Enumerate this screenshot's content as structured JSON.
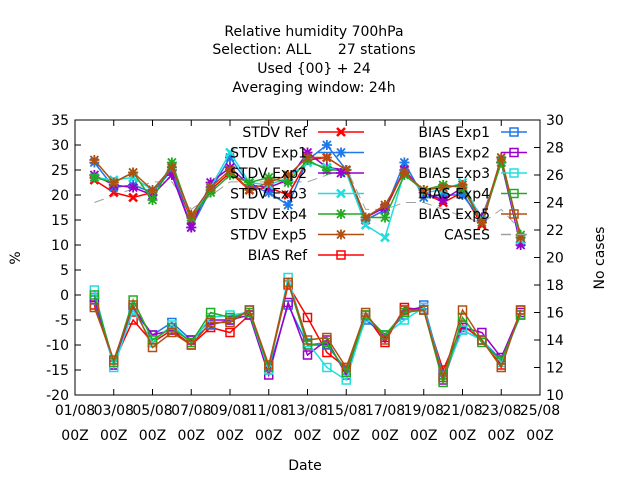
{
  "chart_data": {
    "type": "line",
    "title_lines": [
      "Relative humidity 700hPa",
      "Selection: ALL      27 stations",
      "Used {00} + 24",
      "Averaging window: 24h"
    ],
    "xlabel": "Date",
    "ylabel": "%",
    "y2label": "No cases",
    "ylim": [
      -20,
      35
    ],
    "y2lim": [
      10,
      30
    ],
    "grid": false,
    "legend_position": "top-right",
    "y_ticks": [
      "35",
      "30",
      "25",
      "20",
      "15",
      "10",
      "5",
      "0",
      "-5",
      "-10",
      "-15",
      "-20"
    ],
    "y2_ticks": [
      "30",
      "28",
      "26",
      "24",
      "22",
      "20",
      "18",
      "16",
      "14",
      "12",
      "10"
    ],
    "x_ticks": [
      {
        "date": "01/08",
        "hour": "00Z"
      },
      {
        "date": "03/08",
        "hour": "00Z"
      },
      {
        "date": "05/08",
        "hour": "00Z"
      },
      {
        "date": "07/08",
        "hour": "00Z"
      },
      {
        "date": "09/08",
        "hour": "00Z"
      },
      {
        "date": "11/08",
        "hour": "00Z"
      },
      {
        "date": "13/08",
        "hour": "00Z"
      },
      {
        "date": "15/08",
        "hour": "00Z"
      },
      {
        "date": "17/08",
        "hour": "00Z"
      },
      {
        "date": "19/08",
        "hour": "00Z"
      },
      {
        "date": "21/08",
        "hour": "00Z"
      },
      {
        "date": "23/08",
        "hour": "00Z"
      },
      {
        "date": "25/08",
        "hour": "00Z"
      }
    ],
    "x": [
      "02/08",
      "03/08",
      "04/08",
      "05/08",
      "06/08",
      "07/08",
      "08/08",
      "09/08",
      "10/08",
      "11/08",
      "12/08",
      "13/08",
      "14/08",
      "15/08",
      "16/08",
      "17/08",
      "18/08",
      "19/08",
      "20/08",
      "21/08",
      "22/08",
      "23/08",
      "24/08"
    ],
    "series": [
      {
        "name": "STDV Ref",
        "kind": "stdv",
        "color": "#ff0000",
        "values": [
          23,
          20.5,
          19.5,
          20.5,
          25,
          15,
          21,
          24.5,
          21,
          21.5,
          20,
          27,
          27.5,
          25,
          15,
          17,
          25,
          20.5,
          18.5,
          20.5,
          14,
          27,
          11
        ]
      },
      {
        "name": "STDV Exp1",
        "kind": "stdv",
        "color": "#1e78e8",
        "values": [
          26.5,
          21.5,
          22,
          20.5,
          25,
          13.5,
          21,
          27.5,
          22,
          20.5,
          18,
          27,
          30,
          25,
          15,
          17,
          26.5,
          19.5,
          20,
          20,
          15,
          26.5,
          10.5
        ]
      },
      {
        "name": "STDV Exp2",
        "kind": "stdv",
        "color": "#9900cc",
        "values": [
          24,
          22,
          21.5,
          20,
          24,
          13.5,
          22.5,
          25.5,
          22,
          21.5,
          23,
          28.5,
          25.5,
          25,
          15.5,
          17.5,
          25,
          20.5,
          19,
          21.5,
          15.5,
          26.5,
          10
        ]
      },
      {
        "name": "STDV Exp3",
        "kind": "stdv",
        "color": "#22dddd",
        "values": [
          23.5,
          23,
          23.5,
          21,
          25.5,
          15.5,
          21.5,
          28.5,
          22.5,
          22,
          23.5,
          26.5,
          25.5,
          24.5,
          14,
          11.5,
          24.5,
          20.5,
          21,
          22.5,
          15,
          27,
          11
        ]
      },
      {
        "name": "STDV Exp4",
        "kind": "stdv",
        "color": "#22aa22",
        "values": [
          23.5,
          22.5,
          24.5,
          19,
          26.5,
          15.5,
          20.5,
          24,
          22.5,
          23.5,
          22.5,
          27,
          25,
          25,
          15.5,
          15.5,
          24,
          21,
          22,
          21.5,
          14.5,
          26.5,
          12
        ]
      },
      {
        "name": "STDV Exp5",
        "kind": "stdv",
        "color": "#b05010",
        "values": [
          27,
          22.5,
          24.5,
          21,
          25.5,
          16,
          21.5,
          25,
          21,
          22.5,
          24,
          27.5,
          27.5,
          25,
          15.5,
          18,
          24.5,
          21,
          21.5,
          22,
          14.5,
          27.5,
          11.5
        ]
      },
      {
        "name": "BIAS Ref",
        "kind": "bias",
        "color": "#ff0000",
        "values": [
          -2,
          -13.5,
          -5,
          -9.5,
          -7,
          -10,
          -6.5,
          -7.5,
          -4,
          -14.5,
          2,
          -4.5,
          -11.5,
          -14.5,
          -4,
          -9.5,
          -2.5,
          -3,
          -15,
          -6,
          -9,
          -14,
          -3
        ]
      },
      {
        "name": "BIAS Exp1",
        "kind": "bias",
        "color": "#1e78e8",
        "values": [
          -1,
          -14,
          -3,
          -8,
          -5.5,
          -9,
          -6,
          -5,
          -3,
          -15,
          -2,
          -10,
          -10,
          -15,
          -5,
          -8,
          -4,
          -2,
          -16,
          -7,
          -9,
          -13,
          -4
        ]
      },
      {
        "name": "BIAS Exp2",
        "kind": "bias",
        "color": "#9900cc",
        "values": [
          -0.5,
          -14,
          -2.5,
          -8,
          -7,
          -9,
          -5,
          -5,
          -4,
          -16,
          -1.5,
          -12,
          -9,
          -16,
          -4.5,
          -8.5,
          -3,
          -2.5,
          -17,
          -6.5,
          -7.5,
          -12.5,
          -3.5
        ]
      },
      {
        "name": "BIAS Exp3",
        "kind": "bias",
        "color": "#22dddd",
        "values": [
          1,
          -14.5,
          -3,
          -9.5,
          -6,
          -9.5,
          -4.5,
          -4,
          -3.5,
          -15,
          3.5,
          -9.5,
          -14.5,
          -17,
          -4.5,
          -8,
          -5,
          -2.5,
          -16.5,
          -7,
          -9,
          -13.5,
          -4
        ]
      },
      {
        "name": "BIAS Exp4",
        "kind": "bias",
        "color": "#22aa22",
        "values": [
          0,
          -13.5,
          -1,
          -9,
          -6.5,
          -9.5,
          -3.5,
          -4.5,
          -3.5,
          -14.5,
          2.5,
          -10,
          -9.5,
          -15.5,
          -4,
          -8,
          -3.5,
          -3,
          -17.5,
          -4.5,
          -9.5,
          -13,
          -4
        ]
      },
      {
        "name": "BIAS Exp5",
        "kind": "bias",
        "color": "#b05010",
        "values": [
          -2.5,
          -13,
          -2,
          -10.5,
          -7.5,
          -10,
          -5.5,
          -5.5,
          -3,
          -14,
          2.5,
          -9,
          -8.5,
          -14.5,
          -3.5,
          -9,
          -3,
          -3,
          -16.5,
          -3,
          -9,
          -14.5,
          -3
        ]
      },
      {
        "name": "CASES",
        "kind": "cases",
        "color": "#a0a0a0",
        "values": [
          24,
          24.5,
          25,
          25.5,
          25.5,
          23.5,
          24.5,
          25.5,
          25.5,
          25.5,
          25.5,
          25.5,
          26,
          26.5,
          23.5,
          23.5,
          24,
          24,
          23.5,
          23,
          22.5,
          23.5,
          22
        ]
      }
    ]
  }
}
